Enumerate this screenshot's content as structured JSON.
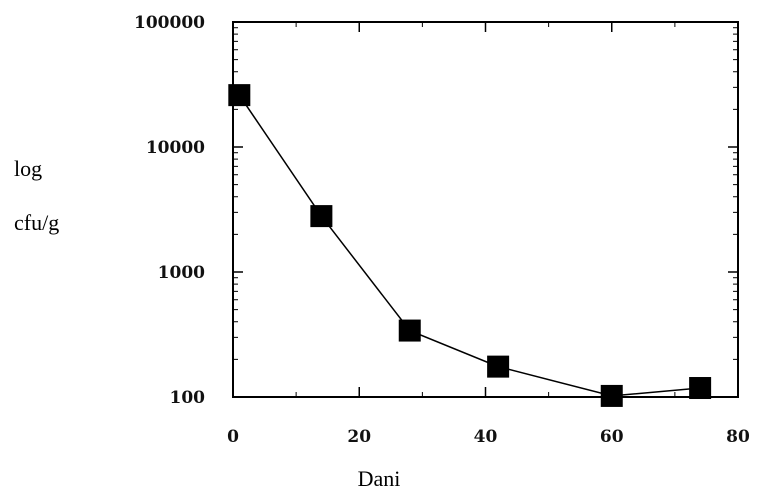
{
  "chart_data": {
    "type": "scatter",
    "xlabel": "Dani",
    "ylabel": [
      "log",
      "cfu/g"
    ],
    "xlim": [
      0,
      80
    ],
    "ylim": [
      100,
      100000
    ],
    "yscale": "log",
    "x_ticks": [
      0,
      20,
      40,
      60,
      80
    ],
    "x_tick_labels": [
      "0",
      "20",
      "40",
      "60",
      "80"
    ],
    "y_ticks": [
      100,
      1000,
      10000,
      100000
    ],
    "y_tick_labels": [
      "100",
      "1000",
      "10000",
      "100000"
    ],
    "grid": false,
    "series": [
      {
        "x": [
          1,
          14,
          28,
          42,
          60,
          74
        ],
        "y": [
          26000,
          2800,
          340,
          175,
          102,
          118
        ]
      }
    ],
    "line_connected": true,
    "marker": "square",
    "color": "#000000"
  }
}
